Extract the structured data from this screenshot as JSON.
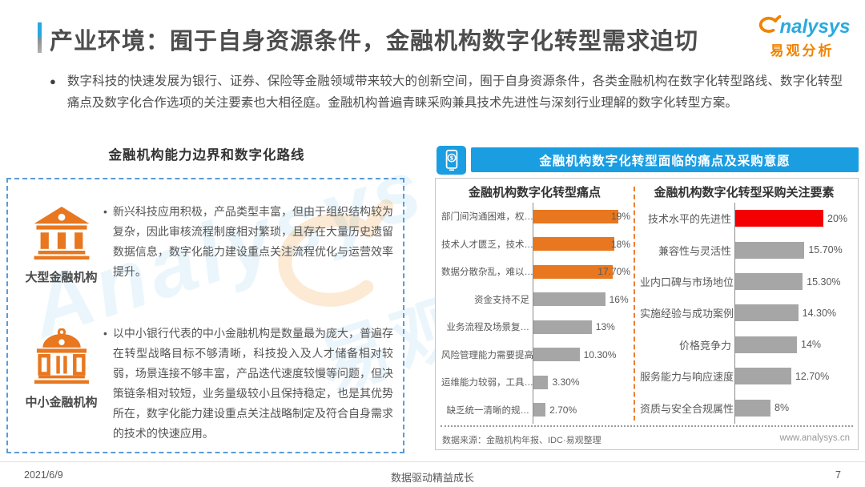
{
  "header": {
    "title": "产业环境：囿于自身资源条件，金融机构数字化转型需求迫切",
    "logo": {
      "symbol": "a-swirl-icon",
      "text_en": "nalysys",
      "text_cn": "易观分析"
    }
  },
  "intro": {
    "bullet_char": "●",
    "text": "数字科技的快速发展为银行、证券、保险等金融领域带来较大的创新空间，囿于自身资源条件，各类金融机构在数字化转型路线、数字化转型痛点及数字化合作选项的关注要素也大相径庭。金融机构普遍青睐采购兼具技术先进性与深刻行业理解的数字化转型方案。"
  },
  "left_section": {
    "title": "金融机构能力边界和数字化路线",
    "items": [
      {
        "icon": "bank-icon",
        "label": "大型金融机构",
        "bullet_char": "•",
        "text": "新兴科技应用积极，产品类型丰富，但由于组织结构较为复杂，因此审核流程制度相对繁琐，且存在大量历史遗留数据信息，数字化能力建设重点关注流程优化与运营效率提升。"
      },
      {
        "icon": "bank-dome-icon",
        "label": "中小金融机构",
        "bullet_char": "•",
        "text": "以中小银行代表的中小金融机构是数量最为庞大，普遍存在转型战略目标不够清晰，科技投入及人才储备相对较弱，场景连接不够丰富，产品迭代速度较慢等问题，但决策链条相对较短，业务量级较小且保持稳定，也是其优势所在，数字化能力建设重点关注战略制定及符合自身需求的技术的快速应用。"
      }
    ]
  },
  "right_section": {
    "banner_icon": "mobile-payment-icon",
    "banner": "金融机构数字化转型面临的痛点及采购意愿",
    "source": "数据来源：金融机构年报、IDC·易观整理",
    "website": "www.analysys.cn"
  },
  "chart_data": [
    {
      "type": "bar",
      "orientation": "horizontal",
      "title": "金融机构数字化转型痛点",
      "categories": [
        "部门间沟通困难，权…",
        "技术人才匮乏，技术…",
        "数据分散杂乱，难以…",
        "资金支持不足",
        "业务流程及场景复…",
        "风险管理能力需要提高",
        "运维能力较弱，工具…",
        "缺乏统一清晰的规…"
      ],
      "values": [
        19,
        18,
        17.7,
        16,
        13,
        10.3,
        3.3,
        2.7
      ],
      "value_labels": [
        "19%",
        "18%",
        "17.70%",
        "16%",
        "13%",
        "10.30%",
        "3.30%",
        "2.70%"
      ],
      "bar_colors": [
        "#e8771f",
        "#e8771f",
        "#e8771f",
        "#a6a6a6",
        "#a6a6a6",
        "#a6a6a6",
        "#a6a6a6",
        "#a6a6a6"
      ],
      "xlim": [
        0,
        21
      ],
      "grid": false,
      "legend": false
    },
    {
      "type": "bar",
      "orientation": "horizontal",
      "title": "金融机构数字化转型采购关注要素",
      "categories": [
        "技术水平的先进性",
        "兼容性与灵活性",
        "业内口碑与市场地位",
        "实施经验与成功案例",
        "价格竞争力",
        "服务能力与响应速度",
        "资质与安全合规属性"
      ],
      "values": [
        20,
        15.7,
        15.3,
        14.3,
        14,
        12.7,
        8
      ],
      "value_labels": [
        "20%",
        "15.70%",
        "15.30%",
        "14.30%",
        "14%",
        "12.70%",
        "8%"
      ],
      "bar_colors": [
        "#f50000",
        "#a6a6a6",
        "#a6a6a6",
        "#a6a6a6",
        "#a6a6a6",
        "#a6a6a6",
        "#a6a6a6"
      ],
      "xlim": [
        0,
        21
      ],
      "grid": false,
      "legend": false
    }
  ],
  "footer": {
    "date": "2021/6/9",
    "slogan": "数据驱动精益成长",
    "page": "7"
  },
  "watermark": {
    "text_en": "Analysys",
    "text_cn": "易观分析"
  },
  "colors": {
    "accent_blue": "#1b9de2",
    "accent_orange": "#e8771f",
    "highlight_red": "#f50000",
    "bar_gray": "#a6a6a6",
    "brand_orange": "#f08300",
    "brand_blue": "#2ba9dd"
  }
}
